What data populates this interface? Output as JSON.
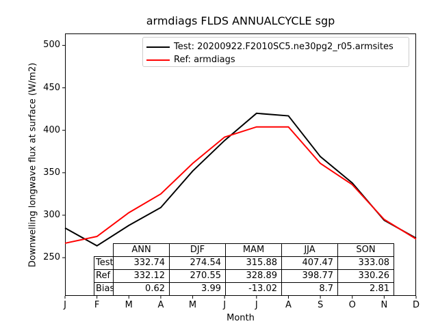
{
  "title": "armdiags FLDS ANNUALCYCLE sgp",
  "chart_data": {
    "type": "line",
    "title": "armdiags FLDS ANNUALCYCLE sgp",
    "xlabel": "Month",
    "ylabel": "Downwelling longwave flux at surface (W/m2)",
    "x_tick_labels": [
      "J",
      "F",
      "M",
      "A",
      "M",
      "J",
      "J",
      "A",
      "S",
      "O",
      "N",
      "D"
    ],
    "y_ticks": [
      250,
      300,
      350,
      400,
      450,
      500
    ],
    "ylim": [
      205,
      514
    ],
    "grid": false,
    "legend_position": "upper center",
    "series": [
      {
        "name": "Test",
        "label": "Test: 20200922.F2010SC5.ne30pg2_r05.armsites",
        "color": "#000000",
        "values": [
          285,
          264,
          288,
          309,
          352,
          388,
          420,
          417,
          369,
          338,
          294,
          273
        ]
      },
      {
        "name": "Ref",
        "label": "Ref: armdiags",
        "color": "#ff0000",
        "values": [
          267,
          275,
          303,
          325,
          361,
          392,
          404,
          404,
          361,
          336,
          295,
          272
        ]
      }
    ],
    "table": {
      "col_headers": [
        "ANN",
        "DJF",
        "MAM",
        "JJA",
        "SON"
      ],
      "rows": [
        {
          "label": "Test",
          "values": [
            "332.74",
            "274.54",
            "315.88",
            "407.47",
            "333.08"
          ]
        },
        {
          "label": "Ref",
          "values": [
            "332.12",
            "270.55",
            "328.89",
            "398.77",
            "330.26"
          ]
        },
        {
          "label": "Bias",
          "values": [
            "0.62",
            "3.99",
            "-13.02",
            "8.7",
            "2.81"
          ]
        }
      ]
    }
  }
}
